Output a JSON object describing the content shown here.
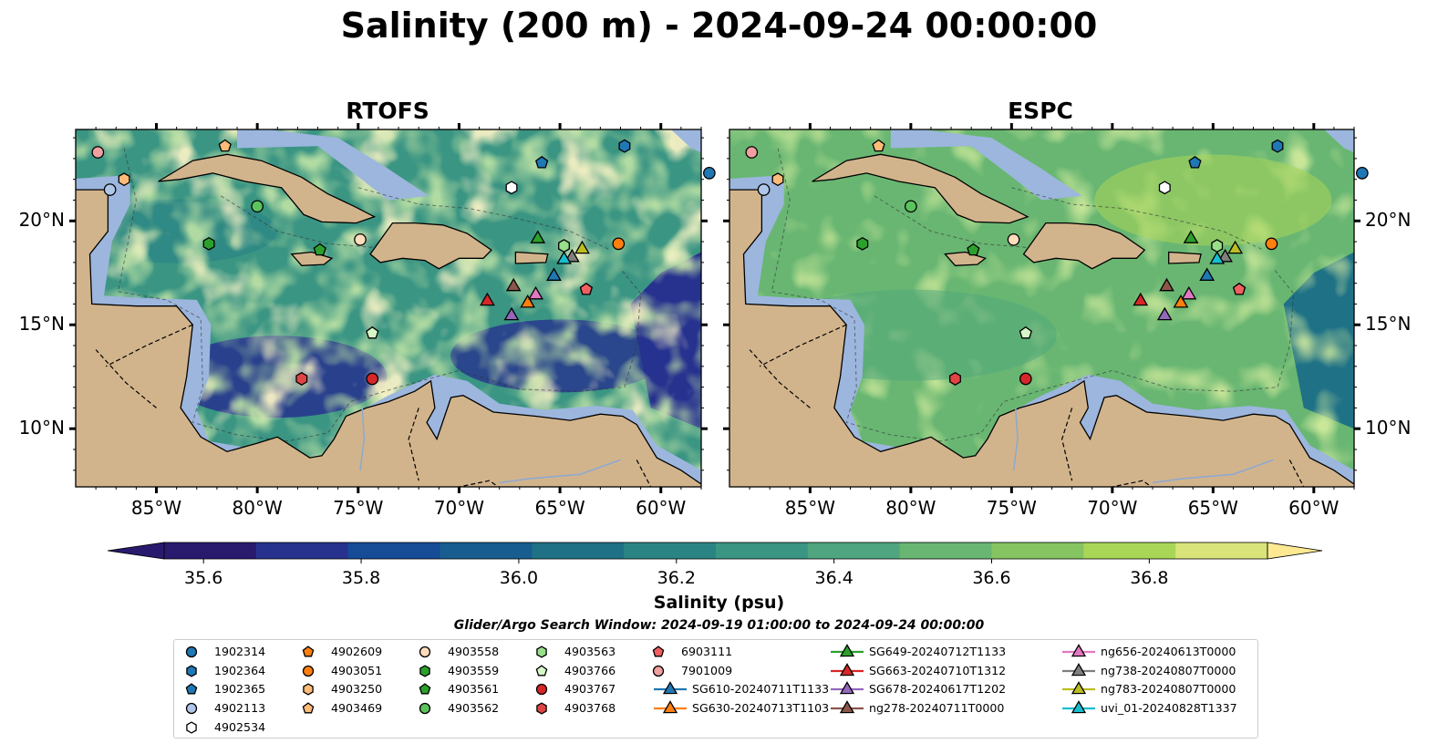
{
  "title": "Salinity (200 m) - 2024-09-24 00:00:00",
  "panels": [
    {
      "title": "RTOFS"
    },
    {
      "title": "ESPC"
    }
  ],
  "axes": {
    "lon_ticks": [
      "85°W",
      "80°W",
      "75°W",
      "70°W",
      "65°W",
      "60°W"
    ],
    "lat_ticks": [
      "20°N",
      "15°N",
      "10°N"
    ]
  },
  "colorbar": {
    "label": "Salinity (psu)",
    "ticks": [
      "35.6",
      "35.8",
      "36.0",
      "36.2",
      "36.4",
      "36.6",
      "36.8"
    ],
    "range": [
      35.55,
      36.95
    ],
    "colors": [
      "#2a1a6e",
      "#27328f",
      "#164b96",
      "#175d8f",
      "#1f7186",
      "#2b8484",
      "#3a9583",
      "#4ea57f",
      "#68b672",
      "#85c460",
      "#a9d657",
      "#d8e37a"
    ],
    "extend_low": "#2a1a6e",
    "extend_high": "#fde992"
  },
  "search_window": "Glider/Argo Search Window: 2024-09-19 01:00:00 to 2024-09-24 00:00:00",
  "legend": [
    {
      "label": "1902314",
      "marker": "circle",
      "color": "#1f77b4"
    },
    {
      "label": "1902364",
      "marker": "hexagon",
      "color": "#1f77b4"
    },
    {
      "label": "1902365",
      "marker": "pentagon",
      "color": "#1f77b4"
    },
    {
      "label": "4902113",
      "marker": "circle",
      "color": "#aec7e8"
    },
    {
      "label": "4902534",
      "marker": "hexagon",
      "color": "#ffffff"
    },
    {
      "label": "4902609",
      "marker": "pentagon",
      "color": "#ff7f0e"
    },
    {
      "label": "4903051",
      "marker": "circle",
      "color": "#ff7f0e"
    },
    {
      "label": "4903250",
      "marker": "hexagon",
      "color": "#ffbb78"
    },
    {
      "label": "4903469",
      "marker": "pentagon",
      "color": "#ffbb78"
    },
    {
      "label": "4903558",
      "marker": "circle",
      "color": "#ffdcbc"
    },
    {
      "label": "4903559",
      "marker": "hexagon",
      "color": "#2ca02c"
    },
    {
      "label": "4903561",
      "marker": "pentagon",
      "color": "#2ca02c"
    },
    {
      "label": "4903562",
      "marker": "circle",
      "color": "#5cc45c"
    },
    {
      "label": "4903563",
      "marker": "hexagon",
      "color": "#98df8a"
    },
    {
      "label": "4903766",
      "marker": "pentagon",
      "color": "#d8f7c8"
    },
    {
      "label": "4903767",
      "marker": "circle",
      "color": "#d62728"
    },
    {
      "label": "4903768",
      "marker": "hexagon",
      "color": "#e04545"
    },
    {
      "label": "6903111",
      "marker": "pentagon",
      "color": "#f06060"
    },
    {
      "label": "7901009",
      "marker": "circle",
      "color": "#f0a0a0"
    },
    {
      "label": "SG610-20240711T1133",
      "marker": "triangle",
      "color": "#1f77b4"
    },
    {
      "label": "SG630-20240713T1103",
      "marker": "triangle",
      "color": "#ff7f0e"
    },
    {
      "label": "SG649-20240712T1133",
      "marker": "triangle",
      "color": "#2ca02c"
    },
    {
      "label": "SG663-20240710T1312",
      "marker": "triangle",
      "color": "#d62728"
    },
    {
      "label": "SG678-20240617T1202",
      "marker": "triangle",
      "color": "#9467bd"
    },
    {
      "label": "ng278-20240711T0000",
      "marker": "triangle",
      "color": "#8c564b"
    },
    {
      "label": "ng656-20240613T0000",
      "marker": "triangle",
      "color": "#e377c2"
    },
    {
      "label": "ng738-20240807T0000",
      "marker": "triangle",
      "color": "#7f7f7f"
    },
    {
      "label": "ng783-20240807T0000",
      "marker": "triangle",
      "color": "#bcbd22"
    },
    {
      "label": "uvi_01-20240828T1337",
      "marker": "triangle",
      "color": "#17becf"
    }
  ],
  "map_colors": {
    "land": "#d2b48c",
    "shelf": "#9cb6de",
    "rtofs_base": "#3a9583",
    "espc_base": "#68b672"
  },
  "observations": [
    {
      "id": "1902314",
      "lon": -57.6,
      "lat": 22.3
    },
    {
      "id": "1902364",
      "lon": -61.8,
      "lat": 23.6
    },
    {
      "id": "1902365",
      "lon": -65.9,
      "lat": 22.8
    },
    {
      "id": "4902113",
      "lon": -87.3,
      "lat": 21.5
    },
    {
      "id": "4902534",
      "lon": -67.4,
      "lat": 21.6
    },
    {
      "id": "4902609",
      "lon": -63.7,
      "lat": 16.7
    },
    {
      "id": "4903051",
      "lon": -62.1,
      "lat": 18.9
    },
    {
      "id": "4903250",
      "lon": -86.6,
      "lat": 22.0
    },
    {
      "id": "4903469",
      "lon": -81.6,
      "lat": 23.6
    },
    {
      "id": "4903558",
      "lon": -74.9,
      "lat": 19.1
    },
    {
      "id": "4903559",
      "lon": -82.4,
      "lat": 18.9
    },
    {
      "id": "4903561",
      "lon": -76.9,
      "lat": 18.6
    },
    {
      "id": "4903562",
      "lon": -80.0,
      "lat": 20.7
    },
    {
      "id": "4903563",
      "lon": -64.8,
      "lat": 18.8
    },
    {
      "id": "4903766",
      "lon": -74.3,
      "lat": 14.6
    },
    {
      "id": "4903767",
      "lon": -74.3,
      "lat": 12.4
    },
    {
      "id": "4903768",
      "lon": -77.8,
      "lat": 12.4
    },
    {
      "id": "6903111",
      "lon": -63.7,
      "lat": 16.7
    },
    {
      "id": "7901009",
      "lon": -87.9,
      "lat": 23.3
    },
    {
      "id": "SG610-20240711T1133",
      "lon": -65.3,
      "lat": 17.4
    },
    {
      "id": "SG630-20240713T1103",
      "lon": -66.6,
      "lat": 16.1
    },
    {
      "id": "SG649-20240712T1133",
      "lon": -66.1,
      "lat": 19.2
    },
    {
      "id": "SG663-20240710T1312",
      "lon": -68.6,
      "lat": 16.2
    },
    {
      "id": "SG678-20240617T1202",
      "lon": -67.4,
      "lat": 15.5
    },
    {
      "id": "ng278-20240711T0000",
      "lon": -67.3,
      "lat": 16.9
    },
    {
      "id": "ng656-20240613T0000",
      "lon": -66.2,
      "lat": 16.5
    },
    {
      "id": "ng738-20240807T0000",
      "lon": -64.4,
      "lat": 18.3
    },
    {
      "id": "ng783-20240807T0000",
      "lon": -63.9,
      "lat": 18.7
    },
    {
      "id": "uvi_01-20240828T1337",
      "lon": -64.8,
      "lat": 18.2
    }
  ]
}
